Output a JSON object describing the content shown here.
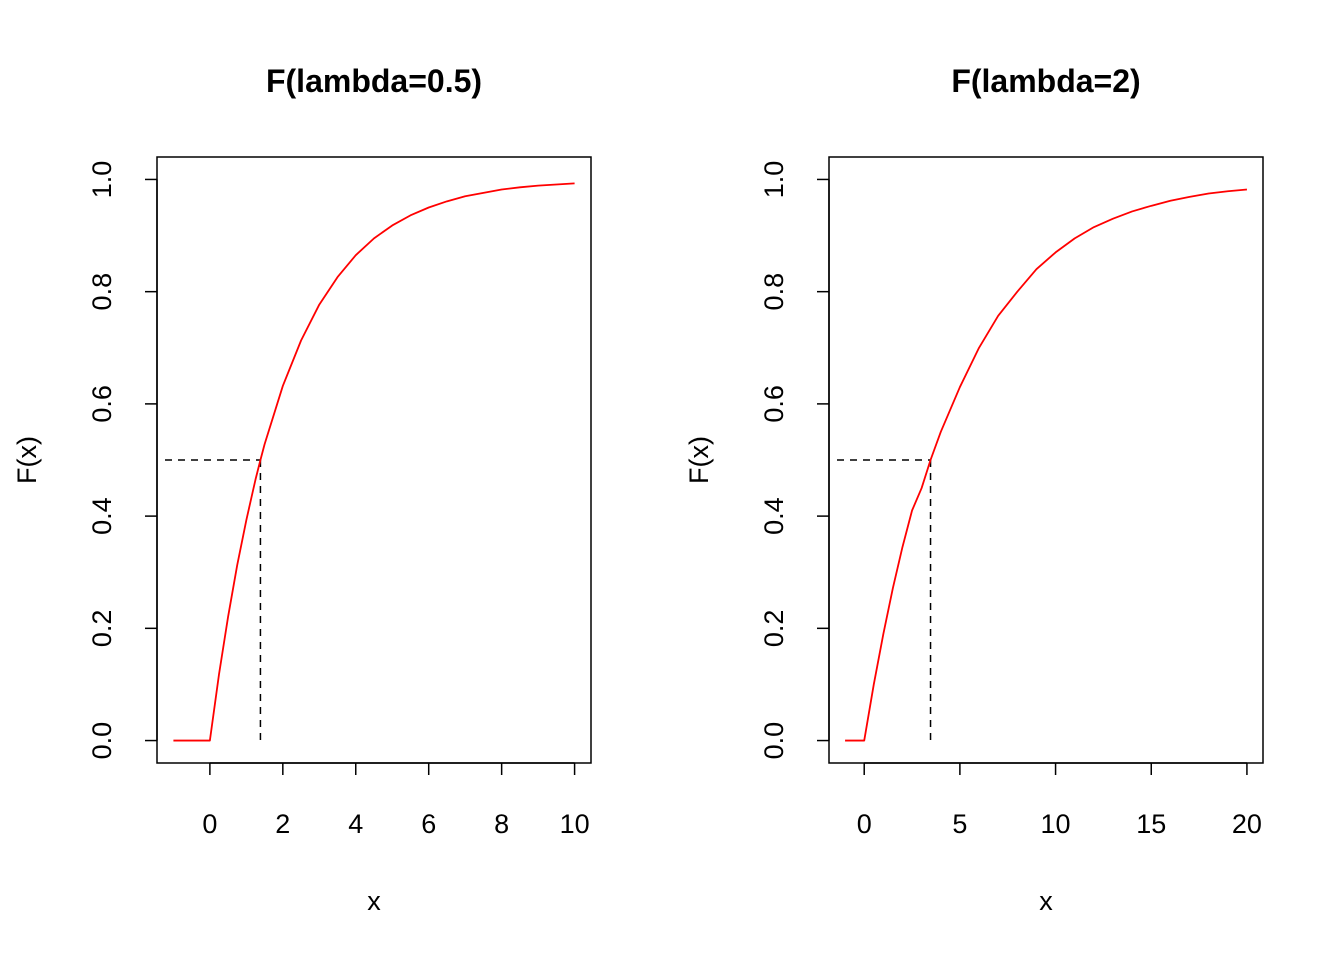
{
  "colors": {
    "curve": "#ff0000",
    "reference": "#000000",
    "frame": "#000000",
    "background": "#ffffff"
  },
  "chart_data": [
    {
      "type": "line",
      "title": "F(lambda=0.5)",
      "xlabel": "x",
      "ylabel": "F(x)",
      "xlim": [
        -1.45,
        10.45
      ],
      "ylim": [
        -0.04,
        1.04
      ],
      "xticks": [
        0,
        2,
        4,
        6,
        8,
        10
      ],
      "yticks": [
        0.0,
        0.2,
        0.4,
        0.6,
        0.8,
        1.0
      ],
      "ytick_labels": [
        "0.0",
        "0.2",
        "0.4",
        "0.6",
        "0.8",
        "1.0"
      ],
      "grid": false,
      "series": [
        {
          "color": "#ff0000",
          "x": [
            -1,
            0,
            0.25,
            0.5,
            0.75,
            1,
            1.25,
            1.386,
            1.5,
            2,
            2.5,
            3,
            3.5,
            4,
            4.5,
            5,
            5.5,
            6,
            6.5,
            7,
            7.5,
            8,
            8.5,
            9,
            9.5,
            10
          ],
          "y": [
            0,
            0,
            0.118,
            0.221,
            0.313,
            0.393,
            0.465,
            0.5,
            0.528,
            0.632,
            0.713,
            0.777,
            0.826,
            0.865,
            0.895,
            0.918,
            0.936,
            0.95,
            0.961,
            0.97,
            0.976,
            0.982,
            0.986,
            0.989,
            0.991,
            0.993
          ]
        }
      ],
      "reference_lines": {
        "median_x": 1.386,
        "median_y": 0.5,
        "style": "dashed"
      }
    },
    {
      "type": "line",
      "title": "F(lambda=2)",
      "xlabel": "x",
      "ylabel": "F(x)",
      "xlim": [
        -1.84,
        20.84
      ],
      "ylim": [
        -0.04,
        1.04
      ],
      "xticks": [
        0,
        5,
        10,
        15,
        20
      ],
      "yticks": [
        0.0,
        0.2,
        0.4,
        0.6,
        0.8,
        1.0
      ],
      "ytick_labels": [
        "0.0",
        "0.2",
        "0.4",
        "0.6",
        "0.8",
        "1.0"
      ],
      "grid": false,
      "series": [
        {
          "color": "#ff0000",
          "x": [
            -1,
            0,
            0.5,
            1,
            1.5,
            2,
            2.5,
            3,
            3.466,
            4,
            5,
            6,
            7,
            8,
            9,
            10,
            11,
            12,
            13,
            14,
            15,
            16,
            17,
            18,
            19,
            20
          ],
          "y": [
            0,
            0,
            0.1,
            0.19,
            0.272,
            0.345,
            0.41,
            0.45,
            0.5,
            0.55,
            0.63,
            0.7,
            0.757,
            0.8,
            0.84,
            0.87,
            0.895,
            0.915,
            0.93,
            0.943,
            0.953,
            0.962,
            0.969,
            0.975,
            0.979,
            0.982
          ]
        }
      ],
      "reference_lines": {
        "median_x": 3.466,
        "median_y": 0.5,
        "style": "dashed"
      }
    }
  ]
}
